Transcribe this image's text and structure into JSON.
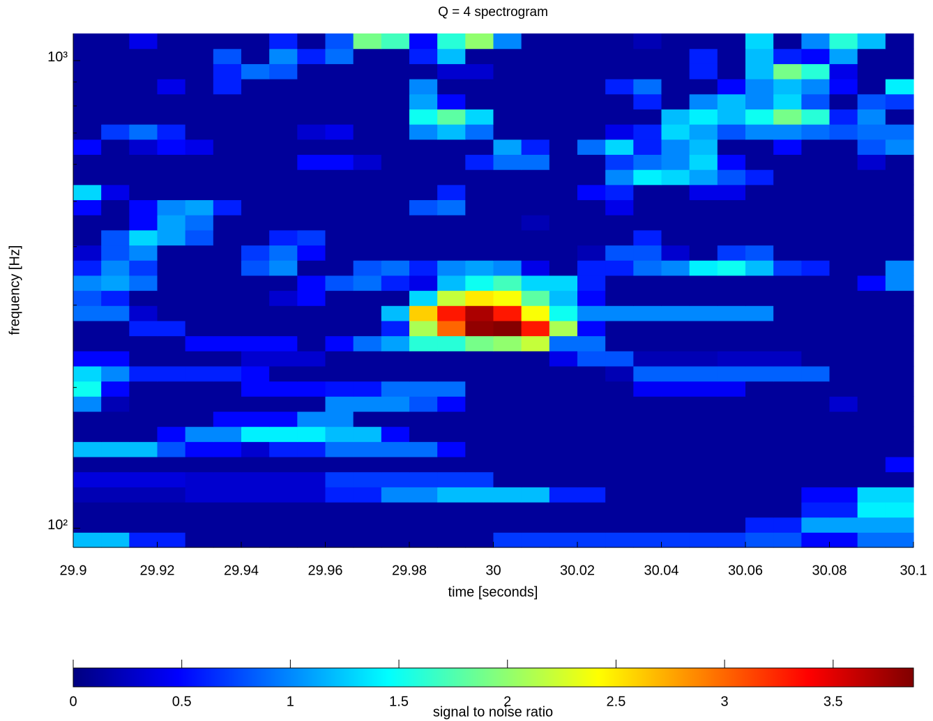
{
  "chart_data": {
    "type": "heatmap",
    "title": "Q = 4 spectrogram",
    "xlabel": "time [seconds]",
    "ylabel": "frequency [Hz]",
    "xlim": [
      29.9,
      30.1
    ],
    "xticks": [
      29.9,
      29.92,
      29.94,
      29.96,
      29.98,
      30,
      30.02,
      30.04,
      30.06,
      30.08,
      30.1
    ],
    "ylim": [
      91,
      1143
    ],
    "ylog": true,
    "yticks": [
      {
        "value": 100,
        "label": "10²"
      },
      {
        "value": 1000,
        "label": "10³"
      }
    ],
    "yminor_ticks": [
      200,
      300,
      400,
      500,
      600,
      700,
      800,
      900
    ],
    "colorbar": {
      "label": "signal to noise ratio",
      "colormap": "jet",
      "clim": [
        0,
        3.87
      ],
      "ticks": [
        0,
        0.5,
        1,
        1.5,
        2,
        2.5,
        3,
        3.5
      ]
    },
    "z": [
      [
        1.2,
        1.2,
        0.6,
        0.6,
        0.1,
        0.1,
        0.1,
        0.1,
        0.1,
        0.1,
        0.1,
        0.1,
        0.1,
        0.1,
        0.1,
        0.7,
        0.7,
        0.7,
        0.7,
        0.7,
        0.7,
        0.7,
        0.7,
        0.7,
        0.8,
        0.8,
        0.5,
        0.5,
        0.9,
        0.9
      ],
      [
        0.1,
        0.1,
        0.1,
        0.1,
        0.1,
        0.1,
        0.1,
        0.1,
        0.1,
        0.1,
        0.1,
        0.1,
        0.1,
        0.1,
        0.1,
        0.1,
        0.1,
        0.1,
        0.1,
        0.1,
        0.1,
        0.1,
        0.1,
        0.1,
        0.6,
        0.6,
        1.1,
        1.1,
        1.1,
        1.1
      ],
      [
        0.1,
        0.1,
        0.1,
        0.1,
        0.1,
        0.1,
        0.1,
        0.1,
        0.1,
        0.1,
        0.1,
        0.1,
        0.1,
        0.1,
        0.1,
        0.1,
        0.1,
        0.1,
        0.1,
        0.1,
        0.1,
        0.1,
        0.1,
        0.1,
        0.1,
        0.1,
        0.6,
        0.6,
        1.4,
        1.4
      ],
      [
        0.2,
        0.2,
        0.2,
        0.2,
        0.3,
        0.3,
        0.3,
        0.3,
        0.3,
        0.6,
        0.6,
        1.0,
        1.0,
        1.2,
        1.2,
        1.2,
        1.2,
        0.6,
        0.6,
        0.1,
        0.1,
        0.1,
        0.1,
        0.1,
        0.1,
        0.1,
        0.5,
        0.5,
        1.3,
        1.3
      ],
      [
        0.35,
        0.35,
        0.35,
        0.35,
        0.3,
        0.3,
        0.3,
        0.3,
        0.3,
        0.7,
        0.7,
        0.7,
        0.7,
        0.7,
        0.7,
        0.1,
        0.1,
        0.1,
        0.1,
        0.1,
        0.1,
        0.1,
        0.1,
        0.1,
        0.1,
        0.1,
        0.1,
        0.1,
        0.1,
        0.1
      ],
      [
        0.1,
        0.1,
        0.1,
        0.1,
        0.1,
        0.1,
        0.1,
        0.1,
        0.1,
        0.1,
        0.1,
        0.1,
        0.1,
        0.1,
        0.1,
        0.1,
        0.1,
        0.1,
        0.1,
        0.1,
        0.1,
        0.1,
        0.1,
        0.1,
        0.1,
        0.1,
        0.1,
        0.1,
        0.1,
        0.5
      ],
      [
        1.2,
        1.2,
        1.2,
        0.8,
        0.5,
        0.5,
        0.3,
        0.6,
        0.6,
        0.9,
        0.9,
        0.9,
        0.9,
        0.5,
        0.1,
        0.1,
        0.1,
        0.1,
        0.1,
        0.1,
        0.1,
        0.1,
        0.1,
        0.1,
        0.1,
        0.1,
        0.1,
        0.1,
        0.1,
        0.1
      ],
      [
        0.1,
        0.1,
        0.1,
        0.5,
        1.0,
        1.0,
        1.4,
        1.4,
        1.4,
        1.2,
        1.2,
        0.5,
        0.1,
        0.1,
        0.1,
        0.1,
        0.1,
        0.1,
        0.1,
        0.1,
        0.1,
        0.1,
        0.1,
        0.1,
        0.1,
        0.1,
        0.1,
        0.1,
        0.1,
        0.1
      ],
      [
        0.1,
        0.1,
        0.1,
        0.1,
        0.1,
        0.5,
        0.5,
        0.5,
        1.0,
        1.0,
        0.1,
        0.1,
        0.1,
        0.1,
        0.1,
        0.1,
        0.1,
        0.1,
        0.1,
        0.1,
        0.1,
        0.1,
        0.1,
        0.1,
        0.1,
        0.1,
        0.1,
        0.1,
        0.1,
        0.1
      ],
      [
        1.0,
        0.2,
        0.1,
        0.1,
        0.1,
        0.1,
        0.1,
        0.1,
        0.1,
        1.0,
        1.0,
        1.0,
        0.8,
        0.5,
        0.1,
        0.1,
        0.1,
        0.1,
        0.1,
        0.1,
        0.1,
        0.1,
        0.1,
        0.1,
        0.1,
        0.1,
        0.1,
        0.3,
        0.1,
        0.1
      ],
      [
        1.5,
        0.5,
        0.1,
        0.1,
        0.1,
        0.1,
        0.5,
        0.5,
        0.5,
        0.55,
        0.55,
        0.9,
        0.9,
        0.9,
        0.1,
        0.1,
        0.1,
        0.1,
        0.1,
        0.1,
        0.45,
        0.45,
        0.45,
        0.45,
        0.1,
        0.1,
        0.1,
        0.1,
        0.1,
        0.1
      ],
      [
        1.3,
        1.0,
        0.6,
        0.6,
        0.6,
        0.6,
        0.5,
        0.1,
        0.1,
        0.1,
        0.1,
        0.1,
        0.1,
        0.1,
        0.1,
        0.1,
        0.1,
        0.1,
        0.1,
        0.2,
        0.85,
        0.85,
        0.85,
        0.85,
        0.85,
        0.85,
        0.85,
        0.1,
        0.1,
        0.1
      ],
      [
        0.5,
        0.5,
        0.1,
        0.1,
        0.1,
        0.1,
        0.3,
        0.3,
        0.3,
        0.1,
        0.1,
        0.1,
        0.1,
        0.1,
        0.1,
        0.1,
        0.1,
        0.4,
        0.8,
        0.8,
        0.2,
        0.2,
        0.2,
        0.25,
        0.25,
        0.25,
        0.1,
        0.1,
        0.1,
        0.1
      ],
      [
        0.1,
        0.1,
        0.1,
        0.1,
        0.5,
        0.5,
        0.5,
        0.5,
        0.1,
        0.5,
        0.9,
        1.1,
        1.6,
        1.6,
        1.9,
        2.0,
        2.2,
        0.9,
        0.9,
        0.1,
        0.1,
        0.1,
        0.1,
        0.1,
        0.1,
        0.1,
        0.1,
        0.1,
        0.1,
        0.1
      ],
      [
        0.1,
        0.1,
        0.6,
        0.6,
        0.1,
        0.1,
        0.1,
        0.1,
        0.1,
        0.1,
        0.1,
        0.6,
        2.1,
        3.0,
        3.8,
        3.85,
        3.3,
        2.1,
        0.5,
        0.1,
        0.1,
        0.1,
        0.1,
        0.1,
        0.1,
        0.1,
        0.1,
        0.1,
        0.1,
        0.1
      ],
      [
        0.9,
        0.9,
        0.3,
        0.1,
        0.1,
        0.1,
        0.1,
        0.1,
        0.1,
        0.1,
        0.1,
        1.2,
        2.6,
        3.3,
        3.7,
        3.3,
        2.4,
        1.5,
        1.0,
        1.0,
        1.0,
        1.0,
        1.0,
        1.0,
        1.0,
        0.1,
        0.1,
        0.1,
        0.1,
        0.1
      ],
      [
        0.8,
        0.6,
        0.1,
        0.1,
        0.1,
        0.1,
        0.1,
        0.3,
        0.5,
        0.1,
        0.1,
        0.1,
        1.3,
        2.2,
        2.5,
        2.4,
        1.8,
        1.2,
        0.5,
        0.1,
        0.1,
        0.1,
        0.1,
        0.1,
        0.1,
        0.1,
        0.1,
        0.1,
        0.1,
        0.1
      ],
      [
        1.0,
        1.1,
        0.9,
        0.1,
        0.1,
        0.1,
        0.1,
        0.1,
        0.5,
        0.8,
        0.9,
        0.6,
        0.4,
        1.2,
        1.5,
        1.7,
        1.3,
        1.3,
        0.6,
        0.1,
        0.1,
        0.1,
        0.1,
        0.1,
        0.1,
        0.1,
        0.1,
        0.1,
        0.5,
        1.0
      ],
      [
        0.6,
        1.0,
        0.7,
        0.1,
        0.1,
        0.1,
        0.8,
        1.0,
        0.1,
        0.1,
        0.8,
        0.9,
        0.6,
        1.0,
        1.1,
        1.0,
        0.4,
        0.1,
        0.6,
        0.6,
        0.9,
        1.0,
        1.4,
        1.5,
        1.2,
        0.7,
        0.6,
        0.1,
        0.1,
        1.0
      ],
      [
        0.3,
        0.8,
        1.0,
        0.1,
        0.1,
        0.1,
        0.7,
        0.9,
        0.5,
        0.1,
        0.1,
        0.1,
        0.1,
        0.1,
        0.1,
        0.1,
        0.1,
        0.1,
        0.2,
        0.8,
        0.8,
        0.3,
        0.1,
        0.7,
        0.8,
        0.1,
        0.1,
        0.1,
        0.1,
        0.1
      ],
      [
        0.1,
        0.8,
        1.3,
        1.1,
        0.8,
        0.1,
        0.1,
        0.6,
        0.7,
        0.1,
        0.1,
        0.1,
        0.1,
        0.1,
        0.1,
        0.1,
        0.1,
        0.1,
        0.1,
        0.1,
        0.6,
        0.1,
        0.1,
        0.1,
        0.1,
        0.1,
        0.1,
        0.1,
        0.1,
        0.1
      ],
      [
        0.1,
        0.1,
        0.5,
        1.1,
        0.9,
        0.1,
        0.1,
        0.1,
        0.1,
        0.1,
        0.1,
        0.1,
        0.1,
        0.1,
        0.1,
        0.1,
        0.2,
        0.1,
        0.1,
        0.1,
        0.1,
        0.1,
        0.1,
        0.1,
        0.1,
        0.1,
        0.1,
        0.1,
        0.1,
        0.1
      ],
      [
        0.5,
        0.1,
        0.5,
        1.0,
        1.1,
        0.6,
        0.1,
        0.1,
        0.1,
        0.1,
        0.1,
        0.1,
        0.8,
        0.9,
        0.1,
        0.1,
        0.1,
        0.1,
        0.1,
        0.4,
        0.1,
        0.1,
        0.1,
        0.1,
        0.1,
        0.1,
        0.1,
        0.1,
        0.1,
        0.1
      ],
      [
        1.3,
        0.4,
        0.1,
        0.1,
        0.1,
        0.1,
        0.1,
        0.1,
        0.1,
        0.1,
        0.1,
        0.1,
        0.1,
        0.6,
        0.1,
        0.1,
        0.1,
        0.1,
        0.5,
        0.6,
        0.1,
        0.1,
        0.4,
        0.4,
        0.1,
        0.1,
        0.1,
        0.1,
        0.1,
        0.1
      ],
      [
        0.1,
        0.1,
        0.1,
        0.1,
        0.1,
        0.1,
        0.1,
        0.1,
        0.1,
        0.1,
        0.1,
        0.1,
        0.1,
        0.1,
        0.1,
        0.1,
        0.1,
        0.1,
        0.1,
        1.0,
        1.4,
        1.3,
        1.1,
        0.8,
        0.6,
        0.1,
        0.1,
        0.1,
        0.1,
        0.1
      ],
      [
        0.1,
        0.1,
        0.1,
        0.1,
        0.1,
        0.1,
        0.1,
        0.1,
        0.5,
        0.5,
        0.3,
        0.1,
        0.1,
        0.1,
        0.6,
        0.9,
        0.9,
        0.1,
        0.1,
        0.7,
        0.9,
        1.0,
        1.3,
        0.5,
        0.1,
        0.1,
        0.1,
        0.1,
        0.3,
        0.1
      ],
      [
        0.5,
        0.1,
        0.3,
        0.5,
        0.4,
        0.1,
        0.1,
        0.1,
        0.1,
        0.1,
        0.1,
        0.1,
        0.1,
        0.1,
        0.1,
        1.1,
        0.6,
        0.1,
        0.9,
        1.3,
        0.6,
        1.0,
        1.2,
        0.1,
        0.1,
        0.5,
        0.1,
        0.1,
        0.8,
        1.0
      ],
      [
        0.1,
        0.7,
        0.9,
        0.6,
        0.1,
        0.1,
        0.1,
        0.1,
        0.3,
        0.4,
        0.1,
        0.1,
        1.0,
        1.2,
        0.9,
        0.1,
        0.1,
        0.1,
        0.1,
        0.4,
        0.6,
        1.3,
        1.1,
        0.8,
        1.0,
        1.0,
        0.9,
        0.8,
        0.9,
        0.9
      ],
      [
        0.1,
        0.1,
        0.1,
        0.1,
        0.1,
        0.1,
        0.1,
        0.1,
        0.1,
        0.1,
        0.1,
        0.1,
        1.5,
        1.8,
        1.3,
        0.1,
        0.1,
        0.1,
        0.1,
        0.1,
        0.1,
        1.2,
        1.4,
        1.2,
        1.5,
        1.9,
        1.6,
        0.6,
        1.0,
        0.1
      ],
      [
        0.1,
        0.1,
        0.1,
        0.1,
        0.1,
        0.1,
        0.1,
        0.1,
        0.1,
        0.1,
        0.1,
        0.1,
        1.1,
        0.5,
        0.1,
        0.1,
        0.1,
        0.1,
        0.1,
        0.1,
        0.6,
        0.1,
        1.0,
        1.2,
        1.0,
        1.3,
        0.8,
        0.1,
        0.8,
        0.7
      ],
      [
        0.1,
        0.1,
        0.1,
        0.4,
        0.1,
        0.6,
        0.1,
        0.1,
        0.1,
        0.1,
        0.1,
        0.1,
        1.0,
        0.1,
        0.1,
        0.1,
        0.1,
        0.1,
        0.1,
        0.6,
        0.9,
        0.1,
        0.1,
        0.5,
        1.0,
        1.2,
        1.0,
        0.5,
        0.1,
        1.4
      ],
      [
        0.1,
        0.1,
        0.1,
        0.1,
        0.1,
        0.6,
        0.9,
        0.8,
        0.1,
        0.1,
        0.1,
        0.1,
        0.1,
        0.3,
        0.3,
        0.1,
        0.1,
        0.1,
        0.1,
        0.1,
        0.1,
        0.1,
        0.6,
        0.1,
        1.2,
        1.9,
        1.6,
        0.4,
        0.1,
        0.1
      ],
      [
        0.1,
        0.1,
        0.1,
        0.1,
        0.1,
        0.8,
        0.1,
        1.0,
        0.6,
        0.9,
        0.1,
        0.1,
        0.6,
        1.2,
        0.1,
        0.1,
        0.1,
        0.1,
        0.1,
        0.1,
        0.1,
        0.1,
        0.6,
        0.1,
        1.2,
        0.6,
        0.5,
        1.1,
        0.1,
        0.1
      ],
      [
        0.1,
        0.1,
        0.4,
        0.1,
        0.1,
        0.1,
        0.1,
        0.6,
        0.1,
        0.8,
        1.9,
        1.7,
        0.5,
        1.6,
        2.0,
        1.0,
        0.1,
        0.1,
        0.1,
        0.1,
        0.2,
        0.1,
        0.1,
        0.1,
        1.3,
        0.1,
        1.0,
        1.6,
        1.2,
        0.1
      ]
    ]
  }
}
